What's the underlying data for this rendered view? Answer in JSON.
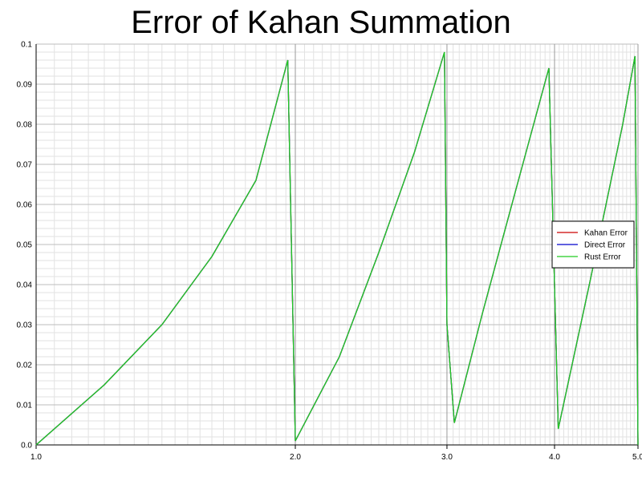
{
  "chart_data": {
    "type": "line",
    "title": "Error of Kahan Summation",
    "xlabel": "",
    "ylabel": "",
    "x_scale": "log",
    "xlim": [
      1.0,
      5.0
    ],
    "ylim": [
      0.0,
      0.1
    ],
    "x_ticks": [
      "1.0",
      "2.0",
      "3.0",
      "4.0",
      "5.0"
    ],
    "y_ticks": [
      "0.0",
      "0.01",
      "0.02",
      "0.03",
      "0.04",
      "0.05",
      "0.06",
      "0.07",
      "0.08",
      "0.09",
      "0.1"
    ],
    "grid": true,
    "legend_position": "right",
    "series": [
      {
        "name": "Kahan Error",
        "color": "#cc0000",
        "x": [
          1.0,
          1.2,
          1.4,
          1.6,
          1.8,
          1.96,
          2.0,
          2.25,
          2.5,
          2.75,
          2.98,
          3.0,
          3.06,
          3.3,
          3.6,
          3.94,
          4.04,
          4.4,
          4.8,
          4.96,
          5.0
        ],
        "y": [
          0.0,
          0.015,
          0.03,
          0.047,
          0.066,
          0.096,
          0.001,
          0.022,
          0.048,
          0.073,
          0.098,
          0.03,
          0.0055,
          0.033,
          0.063,
          0.094,
          0.004,
          0.041,
          0.08,
          0.097,
          0.0
        ]
      },
      {
        "name": "Direct Error",
        "color": "#0000cc",
        "x": [
          1.0,
          1.2,
          1.4,
          1.6,
          1.8,
          1.96,
          2.0,
          2.25,
          2.5,
          2.75,
          2.98,
          3.0,
          3.06,
          3.3,
          3.6,
          3.94,
          4.04,
          4.4,
          4.8,
          4.96,
          5.0
        ],
        "y": [
          0.0,
          0.015,
          0.03,
          0.047,
          0.066,
          0.096,
          0.001,
          0.022,
          0.048,
          0.073,
          0.098,
          0.03,
          0.0055,
          0.033,
          0.063,
          0.094,
          0.004,
          0.041,
          0.08,
          0.097,
          0.0
        ]
      },
      {
        "name": "Rust Error",
        "color": "#22cc22",
        "x": [
          1.0,
          1.2,
          1.4,
          1.6,
          1.8,
          1.96,
          2.0,
          2.25,
          2.5,
          2.75,
          2.98,
          3.0,
          3.06,
          3.3,
          3.6,
          3.94,
          4.04,
          4.4,
          4.8,
          4.96,
          5.0
        ],
        "y": [
          0.0,
          0.015,
          0.03,
          0.047,
          0.066,
          0.096,
          0.001,
          0.022,
          0.048,
          0.073,
          0.098,
          0.03,
          0.0055,
          0.033,
          0.063,
          0.094,
          0.004,
          0.041,
          0.08,
          0.097,
          0.0
        ]
      }
    ]
  }
}
